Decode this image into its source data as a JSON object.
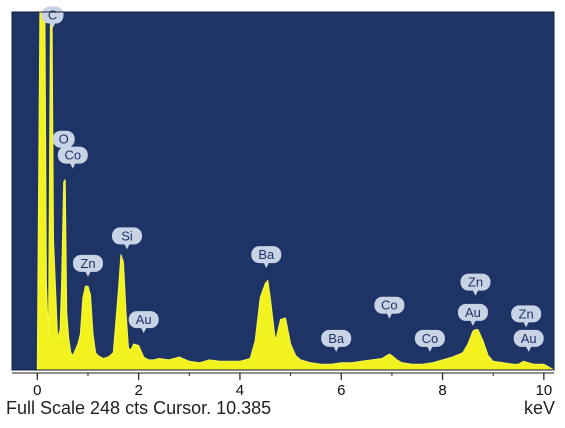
{
  "status_line": "Full Scale 248 cts Cursor. 10.385",
  "chart_data": {
    "type": "line",
    "xlabel": "keV",
    "x_ticks": [
      "0",
      "2",
      "4",
      "6",
      "8",
      "10"
    ],
    "xlim": [
      -0.5,
      10.2
    ],
    "ylim": [
      0,
      248
    ],
    "spectrum": {
      "x": [
        -0.1,
        0,
        0.05,
        0.1,
        0.15,
        0.18,
        0.22,
        0.26,
        0.29,
        0.32,
        0.36,
        0.4,
        0.45,
        0.48,
        0.52,
        0.55,
        0.58,
        0.62,
        0.66,
        0.7,
        0.75,
        0.8,
        0.85,
        0.9,
        0.95,
        1.0,
        1.05,
        1.1,
        1.15,
        1.2,
        1.3,
        1.4,
        1.5,
        1.6,
        1.65,
        1.7,
        1.75,
        1.8,
        1.85,
        1.9,
        2.0,
        2.1,
        2.2,
        2.3,
        2.4,
        2.6,
        2.8,
        3.0,
        3.2,
        3.3,
        3.4,
        3.6,
        3.8,
        4.0,
        4.2,
        4.3,
        4.4,
        4.5,
        4.55,
        4.6,
        4.7,
        4.8,
        4.9,
        5.0,
        5.1,
        5.2,
        5.3,
        5.4,
        5.6,
        5.8,
        6.0,
        6.2,
        6.4,
        6.6,
        6.8,
        6.9,
        6.95,
        7.0,
        7.1,
        7.2,
        7.4,
        7.6,
        7.8,
        8.0,
        8.2,
        8.4,
        8.5,
        8.6,
        8.65,
        8.7,
        8.8,
        8.9,
        9.0,
        9.2,
        9.4,
        9.5,
        9.6,
        9.7,
        9.8,
        9.9,
        10.0,
        10.2
      ],
      "y": [
        0,
        0,
        250,
        250,
        250,
        60,
        20,
        250,
        250,
        90,
        55,
        22,
        28,
        60,
        130,
        132,
        40,
        22,
        12,
        10,
        14,
        18,
        25,
        50,
        58,
        58,
        52,
        25,
        12,
        10,
        8,
        9,
        12,
        55,
        80,
        75,
        40,
        15,
        14,
        18,
        17,
        9,
        7,
        7,
        8,
        7,
        9,
        6,
        5,
        6,
        7,
        6,
        6,
        6,
        8,
        20,
        50,
        60,
        62,
        50,
        20,
        35,
        36,
        18,
        10,
        7,
        6,
        5,
        4,
        4,
        5,
        5,
        6,
        7,
        8,
        10,
        11,
        10,
        7,
        5,
        4,
        4,
        5,
        7,
        9,
        12,
        18,
        27,
        28,
        28,
        20,
        10,
        6,
        5,
        4,
        4,
        6,
        5,
        4,
        4,
        4,
        0
      ]
    },
    "peak_labels": [
      {
        "text": "C",
        "x": 0.3,
        "y": 240
      },
      {
        "text": "O",
        "x": 0.52,
        "y": 154
      },
      {
        "text": "Co",
        "x": 0.7,
        "y": 143
      },
      {
        "text": "Si",
        "x": 1.77,
        "y": 87
      },
      {
        "text": "Zn",
        "x": 1.0,
        "y": 68
      },
      {
        "text": "Au",
        "x": 2.1,
        "y": 29
      },
      {
        "text": "Ba",
        "x": 4.52,
        "y": 74
      },
      {
        "text": "Ba",
        "x": 5.9,
        "y": 16
      },
      {
        "text": "Co",
        "x": 6.95,
        "y": 39
      },
      {
        "text": "Co",
        "x": 7.75,
        "y": 16
      },
      {
        "text": "Zn",
        "x": 8.65,
        "y": 55
      },
      {
        "text": "Au",
        "x": 8.6,
        "y": 34
      },
      {
        "text": "Zn",
        "x": 9.65,
        "y": 33
      },
      {
        "text": "Au",
        "x": 9.7,
        "y": 16
      }
    ]
  }
}
